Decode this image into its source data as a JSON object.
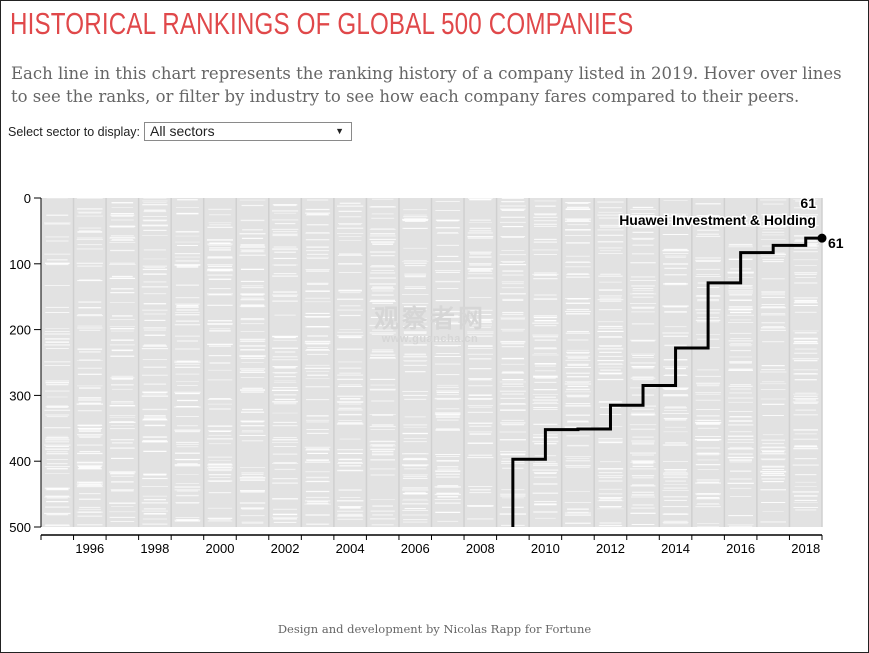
{
  "header": {
    "title": "HISTORICAL RANKINGS OF GLOBAL 500 COMPANIES",
    "intro": "Each line in this chart represents the ranking history of a company listed in 2019. Hover over lines to see the ranks, or filter by industry to see how each company fares compared to their peers."
  },
  "filter": {
    "label": "Select sector to display:",
    "selected": "All sectors"
  },
  "footer": "Design and development by Nicolas Rapp for Fortune",
  "watermark": {
    "main": "观察者网",
    "sub": "www.guancha.cn"
  },
  "colors": {
    "title": "#e0484a",
    "background_band": "#e2e2e2",
    "highlight_line": "#000000",
    "intro_text": "#666666"
  },
  "chart_data": {
    "type": "line",
    "x_range": [
      1995,
      2019
    ],
    "ylim": [
      0,
      500
    ],
    "y_reversed": true,
    "y_ticks": [
      0,
      100,
      200,
      300,
      400,
      500
    ],
    "x_ticks": [
      1996,
      1998,
      2000,
      2002,
      2004,
      2006,
      2008,
      2010,
      2012,
      2014,
      2016,
      2018
    ],
    "highlight": {
      "name": "Huawei Investment & Holding",
      "current_rank": 61,
      "label_year_value": "61",
      "end_value_label": "61",
      "points": [
        {
          "year": 2010,
          "rank": 397
        },
        {
          "year": 2011,
          "rank": 352
        },
        {
          "year": 2012,
          "rank": 351
        },
        {
          "year": 2013,
          "rank": 315
        },
        {
          "year": 2014,
          "rank": 285
        },
        {
          "year": 2015,
          "rank": 228
        },
        {
          "year": 2016,
          "rank": 129
        },
        {
          "year": 2017,
          "rank": 83
        },
        {
          "year": 2018,
          "rank": 72
        },
        {
          "year": 2019,
          "rank": 61
        }
      ]
    }
  }
}
